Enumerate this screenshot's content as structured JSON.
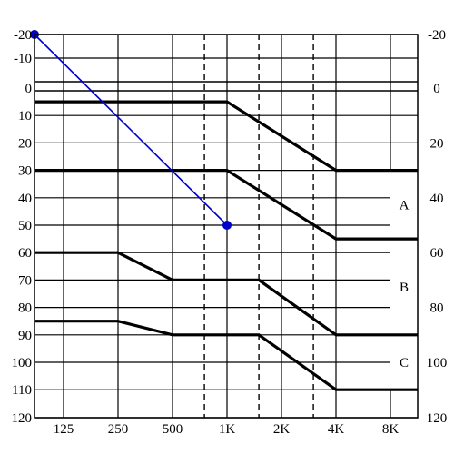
{
  "chart_data": {
    "type": "line",
    "x_categories": [
      "125",
      "250",
      "500",
      "1K",
      "2K",
      "4K",
      "8K"
    ],
    "x_intermediate": [
      750,
      1500,
      3000
    ],
    "y_left_ticks": [
      "-20",
      "-10",
      "0",
      "10",
      "20",
      "30",
      "40",
      "50",
      "60",
      "70",
      "80",
      "90",
      "100",
      "110",
      "120"
    ],
    "y_right_ticks": [
      "-20",
      "0",
      "20",
      "40",
      "60",
      "80",
      "100",
      "120"
    ],
    "ylim": [
      -20,
      120
    ],
    "y_inverted": true,
    "grid": true,
    "series": [
      {
        "color": "#000000",
        "points": [
          [
            88,
            5
          ],
          [
            1000,
            5
          ],
          [
            4000,
            30
          ],
          [
            12000,
            30
          ]
        ]
      },
      {
        "color": "#000000",
        "points": [
          [
            88,
            30
          ],
          [
            1000,
            30
          ],
          [
            4000,
            55
          ],
          [
            12000,
            55
          ]
        ]
      },
      {
        "color": "#000000",
        "points": [
          [
            88,
            60
          ],
          [
            250,
            60
          ],
          [
            500,
            70
          ],
          [
            1500,
            70
          ],
          [
            4000,
            90
          ],
          [
            12000,
            90
          ]
        ]
      },
      {
        "color": "#000000",
        "points": [
          [
            88,
            85
          ],
          [
            250,
            85
          ],
          [
            500,
            90
          ],
          [
            1500,
            90
          ],
          [
            4000,
            110
          ],
          [
            12000,
            110
          ]
        ]
      }
    ],
    "annotation_line": {
      "color": "#0000cc",
      "points": [
        [
          88,
          -20
        ],
        [
          1000,
          50
        ]
      ]
    },
    "regions": [
      "A",
      "B",
      "C"
    ]
  }
}
